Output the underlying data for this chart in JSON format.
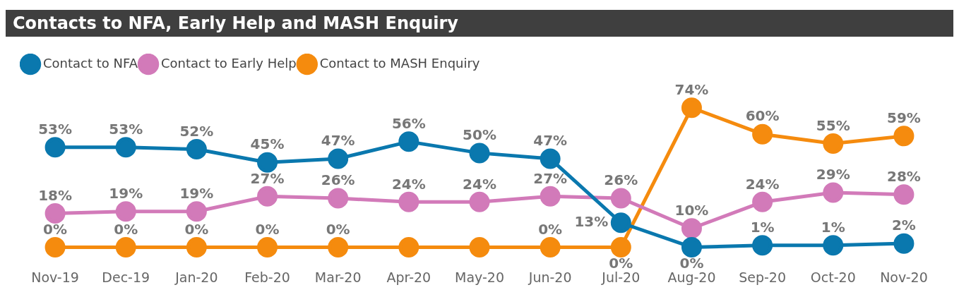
{
  "chart_data": {
    "type": "line",
    "title": "Contacts to NFA, Early Help and MASH Enquiry",
    "categories": [
      "Nov-19",
      "Dec-19",
      "Jan-20",
      "Feb-20",
      "Mar-20",
      "Apr-20",
      "May-20",
      "Jun-20",
      "Jul-20",
      "Aug-20",
      "Sep-20",
      "Oct-20",
      "Nov-20"
    ],
    "series": [
      {
        "name": "Contact to NFA",
        "color": "#0a78ae",
        "values": [
          53,
          53,
          52,
          45,
          47,
          56,
          50,
          47,
          13,
          0,
          1,
          1,
          2
        ],
        "value_labels": [
          "53%",
          "53%",
          "52%",
          "45%",
          "47%",
          "56%",
          "50%",
          "47%",
          "13%",
          "0%",
          "1%",
          "1%",
          "2%"
        ]
      },
      {
        "name": "Contact to Early Help",
        "color": "#d27ab9",
        "values": [
          18,
          19,
          19,
          27,
          26,
          24,
          24,
          27,
          26,
          10,
          24,
          29,
          28
        ],
        "value_labels": [
          "18%",
          "19%",
          "19%",
          "27%",
          "26%",
          "24%",
          "24%",
          "27%",
          "26%",
          "10%",
          "24%",
          "29%",
          "28%"
        ]
      },
      {
        "name": "Contact to MASH Enquiry",
        "color": "#f58b0e",
        "values": [
          0,
          0,
          0,
          0,
          0,
          0,
          0,
          0,
          0,
          74,
          60,
          55,
          59
        ],
        "value_labels": [
          "0%",
          "0%",
          "0%",
          "0%",
          "0%",
          null,
          null,
          "0%",
          "0%",
          "74%",
          "60%",
          "55%",
          "59%"
        ]
      }
    ],
    "legend": "top left",
    "grid": false,
    "marker": "circle",
    "line_style": "solid",
    "tick_labels": "x"
  }
}
